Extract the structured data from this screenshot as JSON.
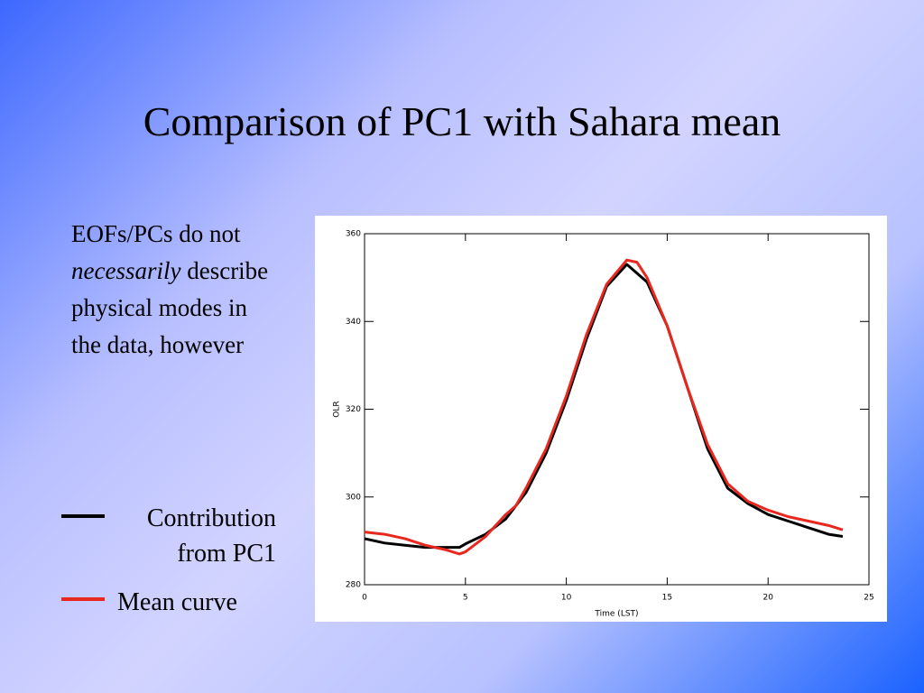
{
  "title": "Comparison of PC1 with Sahara mean",
  "body": [
    "EOFs/PCs do not ",
    "necessarily",
    " describe physical modes in the data, however"
  ],
  "chart_data": {
    "type": "line",
    "xlabel": "Time (LST)",
    "ylabel": "OLR",
    "xlim": [
      0,
      25
    ],
    "xticks": [
      0,
      5,
      10,
      15,
      20,
      25
    ],
    "ylim": [
      280,
      360
    ],
    "yticks": [
      280,
      300,
      320,
      340,
      360
    ],
    "series": [
      {
        "name": "Contribution from PC1",
        "color": "#000000",
        "x": [
          0,
          1,
          2,
          3,
          4,
          4.7,
          5,
          6,
          7,
          8,
          9,
          10,
          11,
          12,
          13,
          14,
          15,
          16,
          17,
          18,
          19,
          20,
          21,
          22,
          23,
          23.7
        ],
        "values": [
          290.5,
          289.5,
          289,
          288.5,
          288.5,
          288.5,
          289.3,
          291.5,
          295,
          301,
          310,
          322,
          336,
          348,
          353,
          349,
          339,
          325,
          311,
          302,
          298.5,
          296,
          294.5,
          293,
          291.5,
          291
        ]
      },
      {
        "name": "Mean curve",
        "color": "#e8281e",
        "x": [
          0,
          1,
          2,
          3,
          4,
          4.7,
          5,
          6,
          7,
          7.5,
          8,
          9,
          10,
          11,
          12,
          13,
          13.5,
          14,
          15,
          16,
          17,
          18,
          19,
          20,
          21,
          22,
          23,
          23.7
        ],
        "values": [
          292,
          291.5,
          290.5,
          289,
          288,
          287,
          287.5,
          291,
          296,
          298,
          302,
          311,
          323,
          337,
          348.5,
          354,
          353.5,
          350,
          339,
          325,
          312,
          303,
          299,
          297,
          295.5,
          294.5,
          293.5,
          292.5
        ]
      }
    ]
  }
}
